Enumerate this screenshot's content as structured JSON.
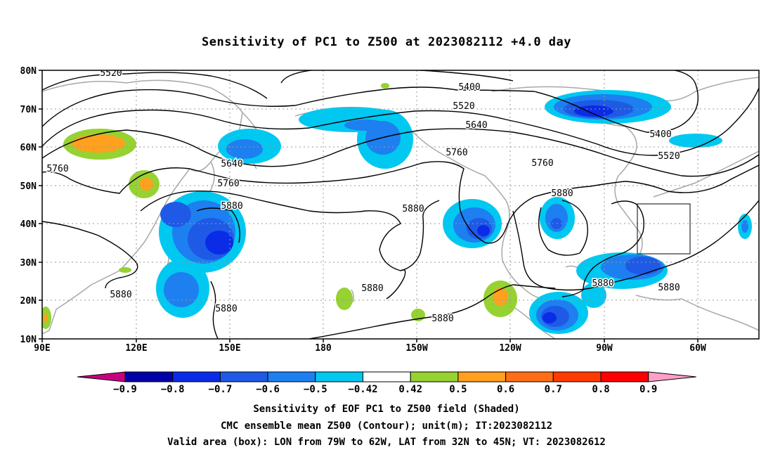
{
  "title": "Sensitivity of PC1 to Z500 at 2023082112 +4.0 day",
  "map": {
    "lat_labels": [
      "80N",
      "70N",
      "60N",
      "50N",
      "40N",
      "30N",
      "20N",
      "10N"
    ],
    "lon_labels": [
      "90E",
      "120E",
      "150E",
      "180",
      "150W",
      "120W",
      "90W",
      "60W"
    ],
    "contour_labels": [
      "5520",
      "5400",
      "5520",
      "5640",
      "5640",
      "5760",
      "5760",
      "5880",
      "5880",
      "5400",
      "5520",
      "5760",
      "5760",
      "5880",
      "5880",
      "5880",
      "5880",
      "5880",
      "5880",
      "5880"
    ],
    "valid_box": {
      "lon_from": "79W",
      "lon_to": "62W",
      "lat_from": "32N",
      "lat_to": "45N"
    }
  },
  "colorbar": {
    "labels": [
      "-0.9",
      "-0.8",
      "-0.7",
      "-0.6",
      "-0.5",
      "-0.42",
      "0.42",
      "0.5",
      "0.6",
      "0.7",
      "0.8",
      "0.9"
    ],
    "colors": [
      "#0000a8",
      "#0a2ce6",
      "#1e5ae6",
      "#1e7ff0",
      "#00c8f0",
      "#ffffff",
      "#96d232",
      "#ffa01e",
      "#ff6e14",
      "#ff3c00",
      "#ff0000"
    ],
    "low_end_color": "#c8007f",
    "high_end_color": "#ff9fc8"
  },
  "captions": {
    "line1": "Sensitivity of EOF PC1 to Z500 field (Shaded)",
    "line2": "CMC ensemble mean Z500 (Contour); unit(m); IT:2023082112",
    "line3": "Valid area (box): LON from 79W to 62W, LAT from 32N to 45N; VT: 2023082612"
  }
}
